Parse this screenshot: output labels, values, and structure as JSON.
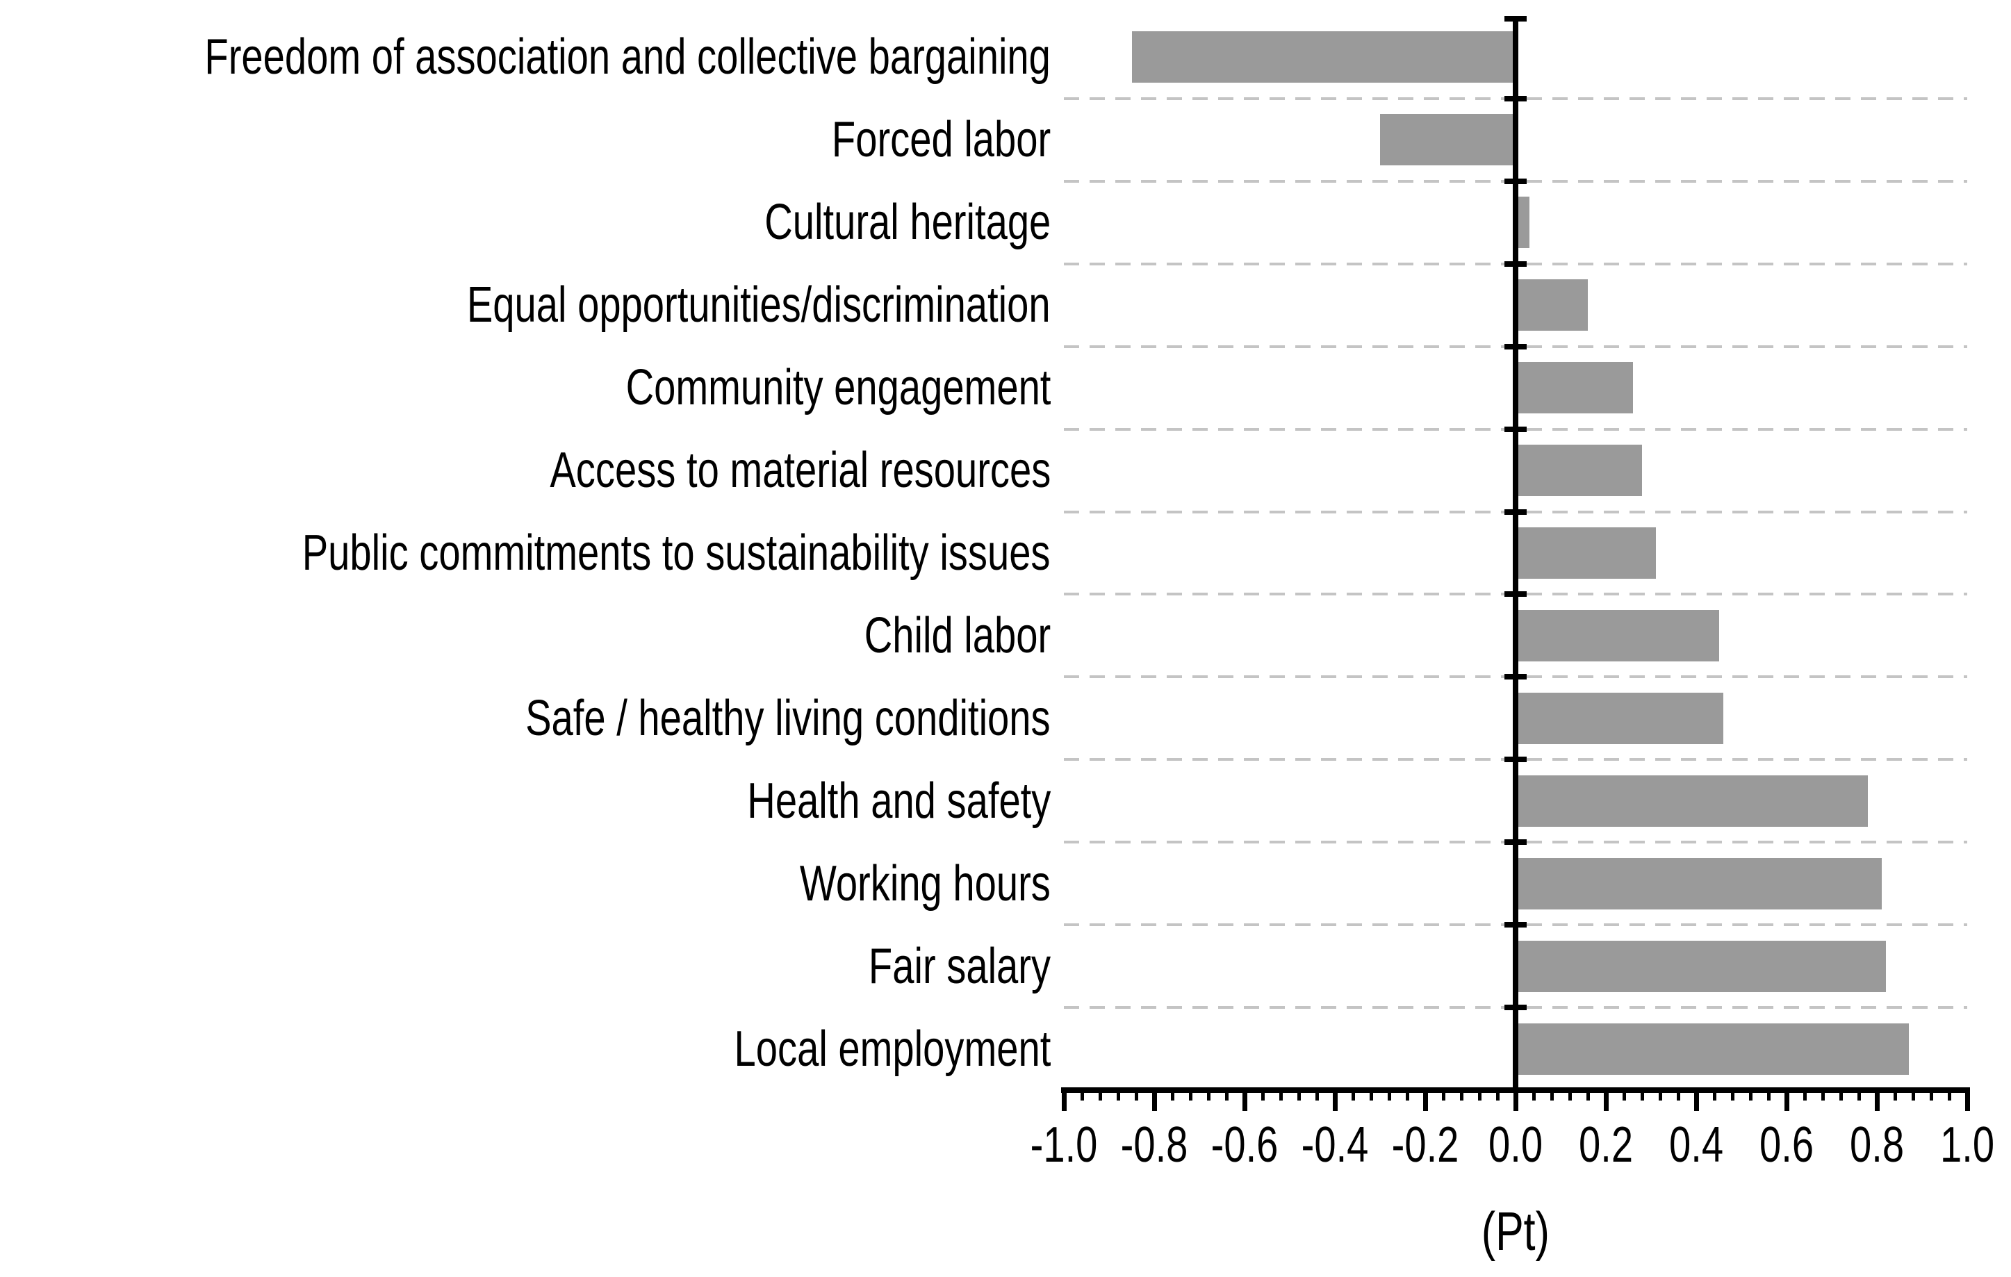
{
  "chart_data": {
    "type": "bar",
    "orientation": "horizontal",
    "title": "",
    "xlabel": "(Pt)",
    "ylabel": "",
    "xlim": [
      -1.0,
      1.0
    ],
    "xtick_step": 0.2,
    "minor_tick_step": 0.04,
    "xtick_labels": [
      "-1.0",
      "-0.8",
      "-0.6",
      "-0.4",
      "-0.2",
      "0.0",
      "0.2",
      "0.4",
      "0.6",
      "0.8",
      "1.0"
    ],
    "grid": "horizontal-dashed-between-categories",
    "legend": "none",
    "categories": [
      "Freedom of association and collective bargaining",
      "Forced labor",
      "Cultural heritage",
      "Equal opportunities/discrimination",
      "Community engagement",
      "Access to material resources",
      "Public commitments to sustainability issues",
      "Child labor",
      "Safe / healthy living conditions",
      "Health and safety",
      "Working hours",
      "Fair salary",
      "Local employment"
    ],
    "values": [
      -0.85,
      -0.3,
      0.03,
      0.16,
      0.26,
      0.28,
      0.31,
      0.45,
      0.46,
      0.78,
      0.81,
      0.82,
      0.87
    ],
    "bar_color": "#9a9a9a",
    "axis_color": "#000000",
    "gridline_color": "#c4c4c4",
    "background_color": "#ffffff"
  }
}
